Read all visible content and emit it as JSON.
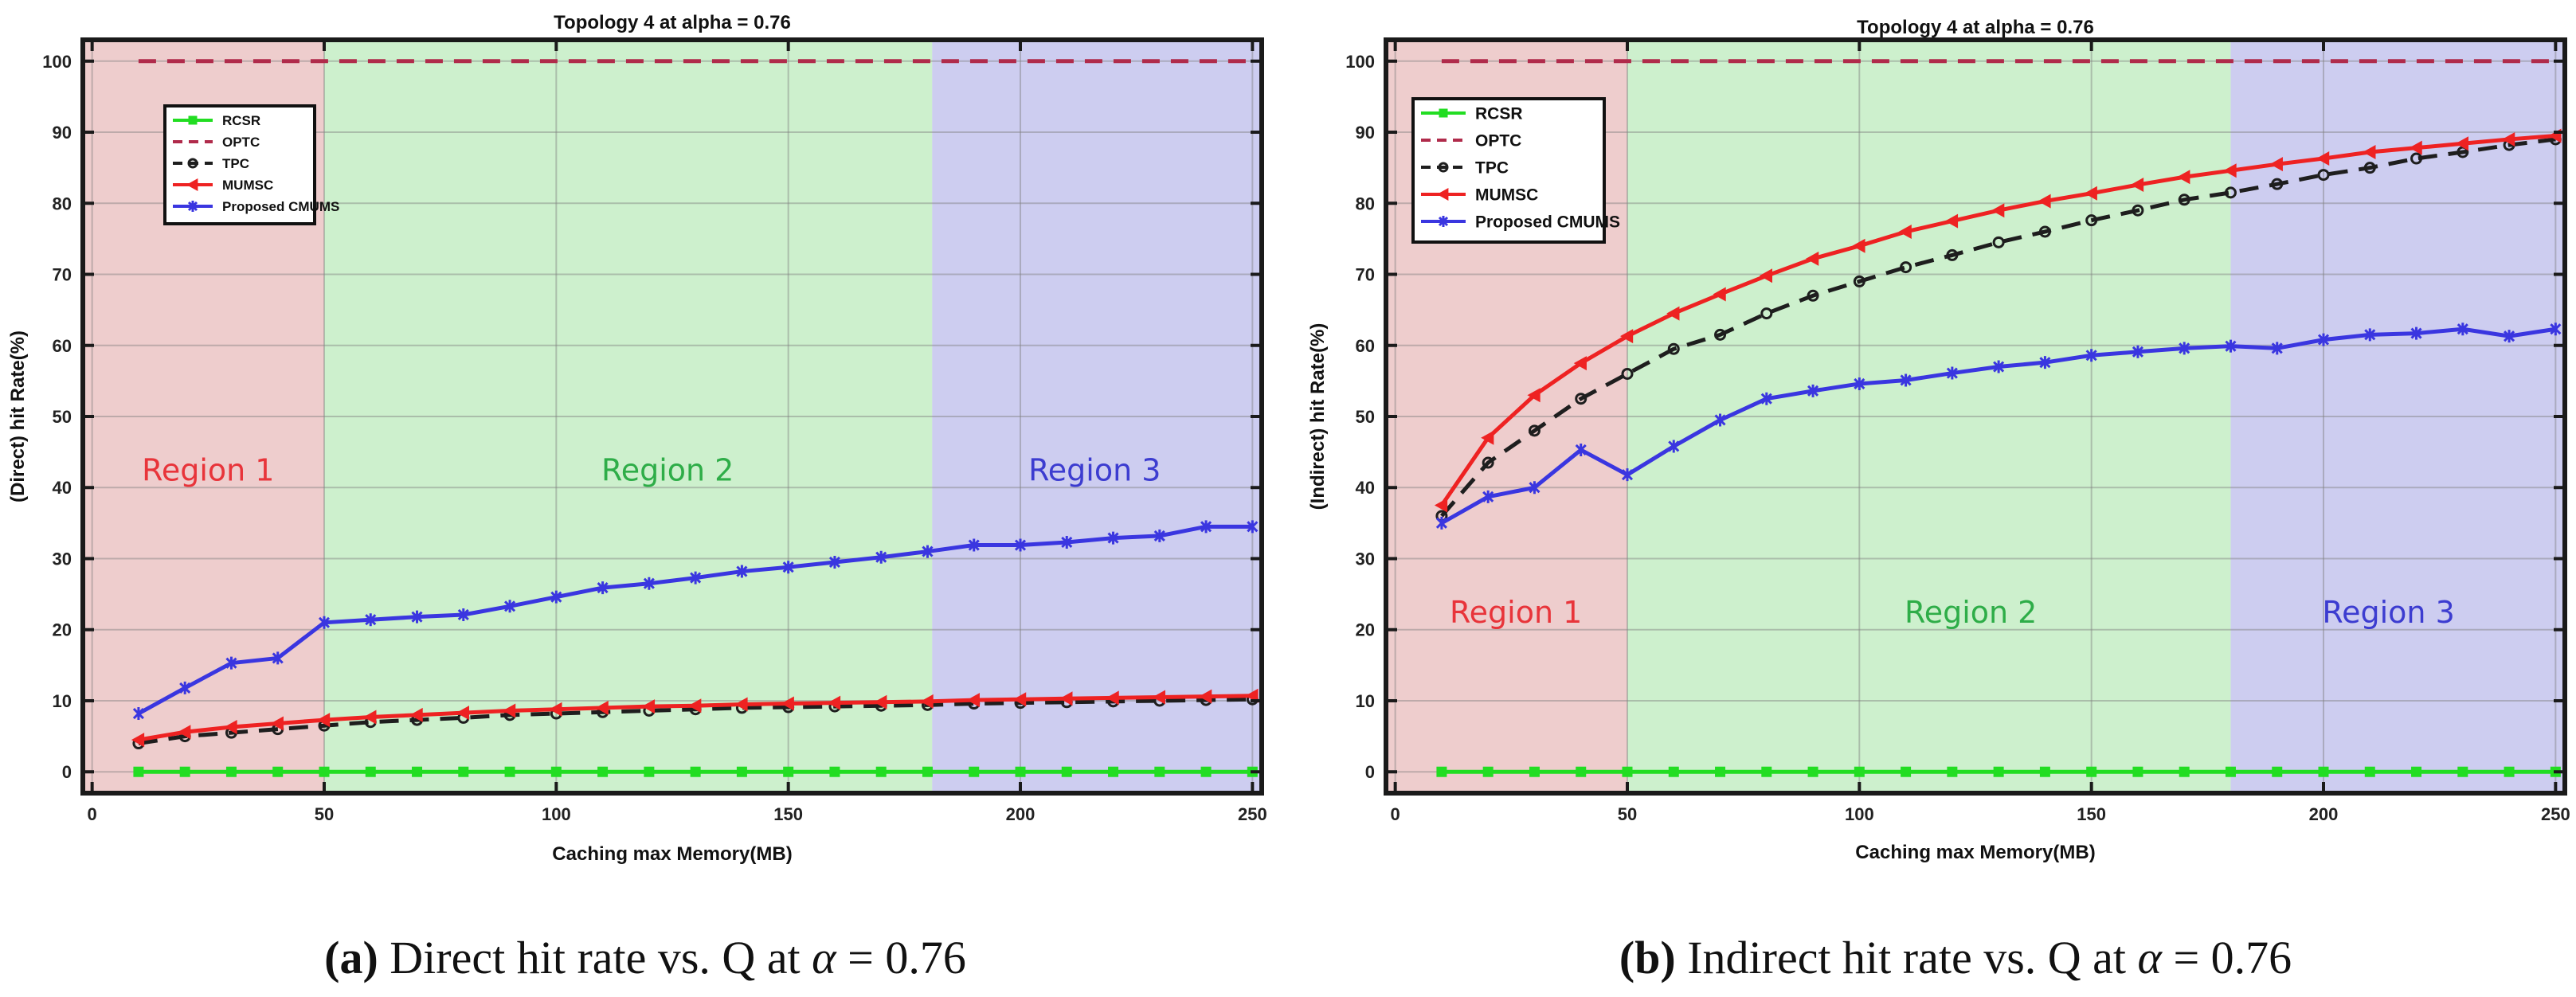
{
  "chart_data": [
    {
      "type": "line",
      "title": "Topology 4 at alpha = 0.76",
      "xlabel": "Caching max Memory(MB)",
      "ylabel": "(Direct) hit Rate(%)",
      "xlim": [
        -2,
        252
      ],
      "ylim": [
        -3,
        103
      ],
      "xticks": [
        0,
        50,
        100,
        150,
        200,
        250
      ],
      "yticks": [
        0,
        10,
        20,
        30,
        40,
        50,
        60,
        70,
        80,
        90,
        100
      ],
      "caption": {
        "label": "(a)",
        "text": " Direct hit rate vs. Q at ",
        "symbol": "α",
        "value": " = 0.76"
      },
      "regions": [
        {
          "name": "Region 1",
          "x0": -2,
          "x1": 50,
          "fill": "#dc9696",
          "label_color": "#e8343a",
          "label_x": 25,
          "label_y": 41
        },
        {
          "name": "Region 2",
          "x0": 50,
          "x1": 181,
          "fill": "#96e096",
          "label_color": "#2ead48",
          "label_x": 124,
          "label_y": 41
        },
        {
          "name": "Region 3",
          "x0": 181,
          "x1": 252,
          "fill": "#9696e0",
          "label_color": "#3c3cd0",
          "label_x": 216,
          "label_y": 41
        }
      ],
      "legend": {
        "position": "top-left",
        "entries": [
          "RCSR",
          "OPTC",
          "TPC",
          "MUMSC",
          "Proposed CMUMS"
        ]
      },
      "series": [
        {
          "name": "RCSR",
          "color": "#22dd22",
          "marker": "square",
          "dash": false,
          "x": [
            10,
            20,
            30,
            40,
            50,
            60,
            70,
            80,
            90,
            100,
            110,
            120,
            130,
            140,
            150,
            160,
            170,
            180,
            190,
            200,
            210,
            220,
            230,
            240,
            250
          ],
          "values": [
            0,
            0,
            0,
            0,
            0,
            0,
            0,
            0,
            0,
            0,
            0,
            0,
            0,
            0,
            0,
            0,
            0,
            0,
            0,
            0,
            0,
            0,
            0,
            0,
            0
          ]
        },
        {
          "name": "OPTC",
          "color": "#b02b4b",
          "marker": "none",
          "dash": true,
          "x": [
            10,
            250
          ],
          "values": [
            100,
            100
          ]
        },
        {
          "name": "TPC",
          "color": "#1e1e1e",
          "marker": "circle",
          "dash": true,
          "x": [
            10,
            20,
            30,
            40,
            50,
            60,
            70,
            80,
            90,
            100,
            110,
            120,
            130,
            140,
            150,
            160,
            170,
            180,
            190,
            200,
            210,
            220,
            230,
            240,
            250
          ],
          "values": [
            4.0,
            5.0,
            5.5,
            6.0,
            6.5,
            7.0,
            7.3,
            7.6,
            8.0,
            8.2,
            8.4,
            8.6,
            8.8,
            9.0,
            9.1,
            9.2,
            9.3,
            9.4,
            9.6,
            9.7,
            9.8,
            9.9,
            10.0,
            10.1,
            10.2
          ]
        },
        {
          "name": "MUMSC",
          "color": "#ee2222",
          "marker": "triangle",
          "dash": false,
          "x": [
            10,
            20,
            30,
            40,
            50,
            60,
            70,
            80,
            90,
            100,
            110,
            120,
            130,
            140,
            150,
            160,
            170,
            180,
            190,
            200,
            210,
            220,
            230,
            240,
            250
          ],
          "values": [
            4.5,
            5.6,
            6.3,
            6.8,
            7.3,
            7.7,
            8.0,
            8.3,
            8.6,
            8.8,
            9.0,
            9.2,
            9.3,
            9.5,
            9.6,
            9.7,
            9.8,
            9.9,
            10.1,
            10.2,
            10.3,
            10.4,
            10.5,
            10.6,
            10.7
          ]
        },
        {
          "name": "Proposed CMUMS",
          "color": "#3a36e0",
          "marker": "star",
          "dash": false,
          "x": [
            10,
            20,
            30,
            40,
            50,
            60,
            70,
            80,
            90,
            100,
            110,
            120,
            130,
            140,
            150,
            160,
            170,
            180,
            190,
            200,
            210,
            220,
            230,
            240,
            250
          ],
          "values": [
            8.2,
            11.8,
            15.3,
            16.0,
            21.0,
            21.4,
            21.8,
            22.1,
            23.3,
            24.6,
            25.9,
            26.5,
            27.3,
            28.2,
            28.8,
            29.5,
            30.2,
            31.0,
            31.9,
            31.9,
            32.3,
            32.9,
            33.2,
            34.5,
            34.5
          ]
        }
      ]
    },
    {
      "type": "line",
      "title": "Topology 4 at alpha = 0.76",
      "xlabel": "Caching max Memory(MB)",
      "ylabel": "(Indirect) hit Rate(%)",
      "xlim": [
        -2,
        252
      ],
      "ylim": [
        -3,
        103
      ],
      "xticks": [
        0,
        50,
        100,
        150,
        200,
        250
      ],
      "yticks": [
        0,
        10,
        20,
        30,
        40,
        50,
        60,
        70,
        80,
        90,
        100
      ],
      "caption": {
        "label": "(b)",
        "text": " Indirect hit rate vs. Q at ",
        "symbol": "α",
        "value": " = 0.76"
      },
      "regions": [
        {
          "name": "Region 1",
          "x0": -2,
          "x1": 50,
          "fill": "#dc9696",
          "label_color": "#e8343a",
          "label_x": 26,
          "label_y": 21
        },
        {
          "name": "Region 2",
          "x0": 50,
          "x1": 180,
          "fill": "#96e096",
          "label_color": "#2ead48",
          "label_x": 124,
          "label_y": 21
        },
        {
          "name": "Region 3",
          "x0": 180,
          "x1": 252,
          "fill": "#9696e0",
          "label_color": "#3c3cd0",
          "label_x": 214,
          "label_y": 21
        }
      ],
      "legend": {
        "position": "top-left",
        "entries": [
          "RCSR",
          "OPTC",
          "TPC",
          "MUMSC",
          "Proposed CMUMS"
        ]
      },
      "series": [
        {
          "name": "RCSR",
          "color": "#22dd22",
          "marker": "square",
          "dash": false,
          "x": [
            10,
            20,
            30,
            40,
            50,
            60,
            70,
            80,
            90,
            100,
            110,
            120,
            130,
            140,
            150,
            160,
            170,
            180,
            190,
            200,
            210,
            220,
            230,
            240,
            250
          ],
          "values": [
            0,
            0,
            0,
            0,
            0,
            0,
            0,
            0,
            0,
            0,
            0,
            0,
            0,
            0,
            0,
            0,
            0,
            0,
            0,
            0,
            0,
            0,
            0,
            0,
            0
          ]
        },
        {
          "name": "OPTC",
          "color": "#b02b4b",
          "marker": "none",
          "dash": true,
          "x": [
            10,
            250
          ],
          "values": [
            100,
            100
          ]
        },
        {
          "name": "TPC",
          "color": "#1e1e1e",
          "marker": "circle",
          "dash": true,
          "x": [
            10,
            20,
            30,
            40,
            50,
            60,
            70,
            80,
            90,
            100,
            110,
            120,
            130,
            140,
            150,
            160,
            170,
            180,
            190,
            200,
            210,
            220,
            230,
            240,
            250
          ],
          "values": [
            36.0,
            43.5,
            48.0,
            52.5,
            56.0,
            59.5,
            61.5,
            64.5,
            67.0,
            69.0,
            71.0,
            72.7,
            74.5,
            76.0,
            77.6,
            79.0,
            80.5,
            81.5,
            82.7,
            84.0,
            85.0,
            86.3,
            87.2,
            88.2,
            89.0
          ]
        },
        {
          "name": "MUMSC",
          "color": "#ee2222",
          "marker": "triangle",
          "dash": false,
          "x": [
            10,
            20,
            30,
            40,
            50,
            60,
            70,
            80,
            90,
            100,
            110,
            120,
            130,
            140,
            150,
            160,
            170,
            180,
            190,
            200,
            210,
            220,
            230,
            240,
            250
          ],
          "values": [
            37.5,
            47.0,
            53.0,
            57.5,
            61.3,
            64.5,
            67.2,
            69.8,
            72.2,
            74.0,
            76.0,
            77.5,
            79.0,
            80.3,
            81.4,
            82.6,
            83.7,
            84.6,
            85.5,
            86.3,
            87.2,
            87.8,
            88.4,
            89.0,
            89.5
          ]
        },
        {
          "name": "Proposed CMUMS",
          "color": "#3a36e0",
          "marker": "star",
          "dash": false,
          "x": [
            10,
            20,
            30,
            40,
            50,
            60,
            70,
            80,
            90,
            100,
            110,
            120,
            130,
            140,
            150,
            160,
            170,
            180,
            190,
            200,
            210,
            220,
            230,
            240,
            250
          ],
          "values": [
            35.0,
            38.7,
            40.0,
            45.3,
            41.8,
            45.8,
            49.5,
            52.5,
            53.6,
            54.6,
            55.1,
            56.1,
            57.0,
            57.6,
            58.6,
            59.1,
            59.6,
            59.9,
            59.6,
            60.8,
            61.5,
            61.7,
            62.3,
            61.3,
            62.3
          ]
        }
      ]
    }
  ]
}
